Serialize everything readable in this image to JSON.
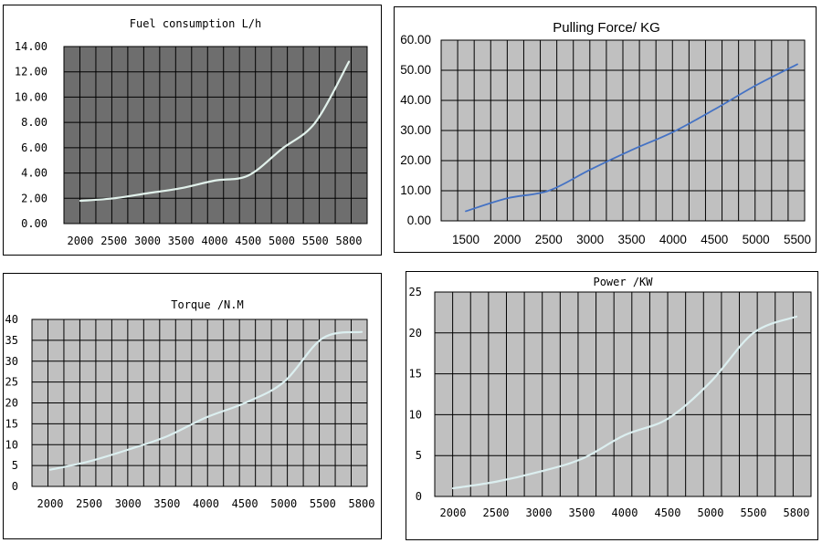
{
  "chart_data": [
    {
      "type": "line",
      "title": "Fuel consumption L/h",
      "x_labels": [
        "2000",
        "2500",
        "3000",
        "3500",
        "4000",
        "4500",
        "5000",
        "5500",
        "5800"
      ],
      "y_labels": [
        "0.00",
        "2.00",
        "4.00",
        "6.00",
        "8.00",
        "10.00",
        "12.00",
        "14.00"
      ],
      "ylim": [
        0,
        14
      ],
      "grid": true,
      "background": "#6e6e6e",
      "line_color": "#e2f2ec",
      "series": [
        {
          "values": [
            1.8,
            2.0,
            2.4,
            2.8,
            3.4,
            3.8,
            5.9,
            8.0,
            12.8
          ]
        }
      ]
    },
    {
      "type": "line",
      "title": "Pulling Force/ KG",
      "x_labels": [
        "1500",
        "2000",
        "2500",
        "3000",
        "3500",
        "4000",
        "4500",
        "5000",
        "5500"
      ],
      "y_labels": [
        "0.00",
        "10.00",
        "20.00",
        "30.00",
        "40.00",
        "50.00",
        "60.00"
      ],
      "ylim": [
        0,
        60
      ],
      "grid": true,
      "background": "#c0c0c0",
      "line_color": "#4472c4",
      "series": [
        {
          "values": [
            3.2,
            7.5,
            10.0,
            17.0,
            23.5,
            29.5,
            37.0,
            45.0,
            52.0
          ]
        }
      ]
    },
    {
      "type": "line",
      "title": "Torque /N.M",
      "x_labels": [
        "2000",
        "2500",
        "3000",
        "3500",
        "4000",
        "4500",
        "5000",
        "5500",
        "5800"
      ],
      "y_labels": [
        "0",
        "5",
        "10",
        "15",
        "20",
        "25",
        "30",
        "35",
        "40"
      ],
      "ylim": [
        0,
        40
      ],
      "grid": true,
      "background": "#c0c0c0",
      "line_color": "#dceff0",
      "series": [
        {
          "values": [
            4.0,
            6.0,
            8.8,
            12.0,
            16.5,
            20.0,
            25.0,
            35.5,
            37.0
          ]
        }
      ]
    },
    {
      "type": "line",
      "title": "Power /KW",
      "x_labels": [
        "2000",
        "2500",
        "3000",
        "3500",
        "4000",
        "4500",
        "5000",
        "5500",
        "5800"
      ],
      "y_labels": [
        "0",
        "5",
        "10",
        "15",
        "20",
        "25"
      ],
      "ylim": [
        0,
        25
      ],
      "grid": true,
      "background": "#c0c0c0",
      "line_color": "#dceff0",
      "series": [
        {
          "values": [
            1.0,
            1.8,
            3.0,
            4.6,
            7.5,
            9.5,
            14.0,
            20.0,
            22.0
          ]
        }
      ]
    }
  ]
}
